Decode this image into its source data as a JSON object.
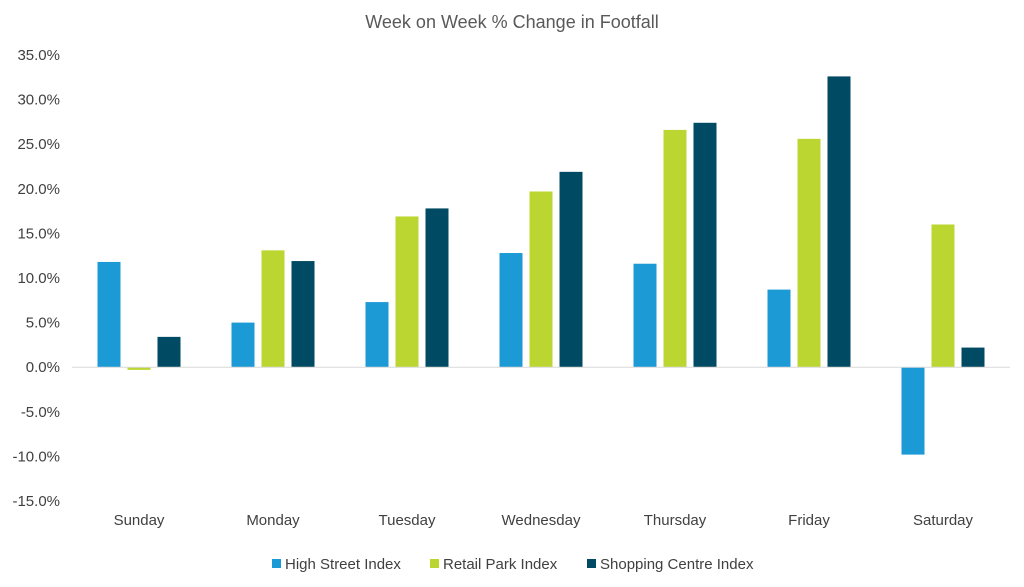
{
  "chart_data": {
    "type": "bar",
    "title": "Week on Week % Change in Footfall",
    "xlabel": "",
    "ylabel": "",
    "ylim": [
      -15,
      35
    ],
    "yticks": [
      "35.0%",
      "30.0%",
      "25.0%",
      "20.0%",
      "15.0%",
      "10.0%",
      "5.0%",
      "0.0%",
      "-5.0%",
      "-10.0%",
      "-15.0%"
    ],
    "ytick_values": [
      35,
      30,
      25,
      20,
      15,
      10,
      5,
      0,
      -5,
      -10,
      -15
    ],
    "categories": [
      "Sunday",
      "Monday",
      "Tuesday",
      "Wednesday",
      "Thursday",
      "Friday",
      "Saturday"
    ],
    "series": [
      {
        "name": "High Street Index",
        "color": "#1b9ad6",
        "values": [
          11.8,
          5.0,
          7.3,
          12.8,
          11.6,
          8.7,
          -9.8
        ]
      },
      {
        "name": "Retail Park Index",
        "color": "#bcd631",
        "values": [
          -0.3,
          13.1,
          16.9,
          19.7,
          26.6,
          25.6,
          16.0
        ]
      },
      {
        "name": "Shopping Centre Index",
        "color": "#004b63",
        "values": [
          3.4,
          11.9,
          17.8,
          21.9,
          27.4,
          32.6,
          2.2
        ]
      }
    ],
    "grid": false,
    "legend": "bottom"
  }
}
